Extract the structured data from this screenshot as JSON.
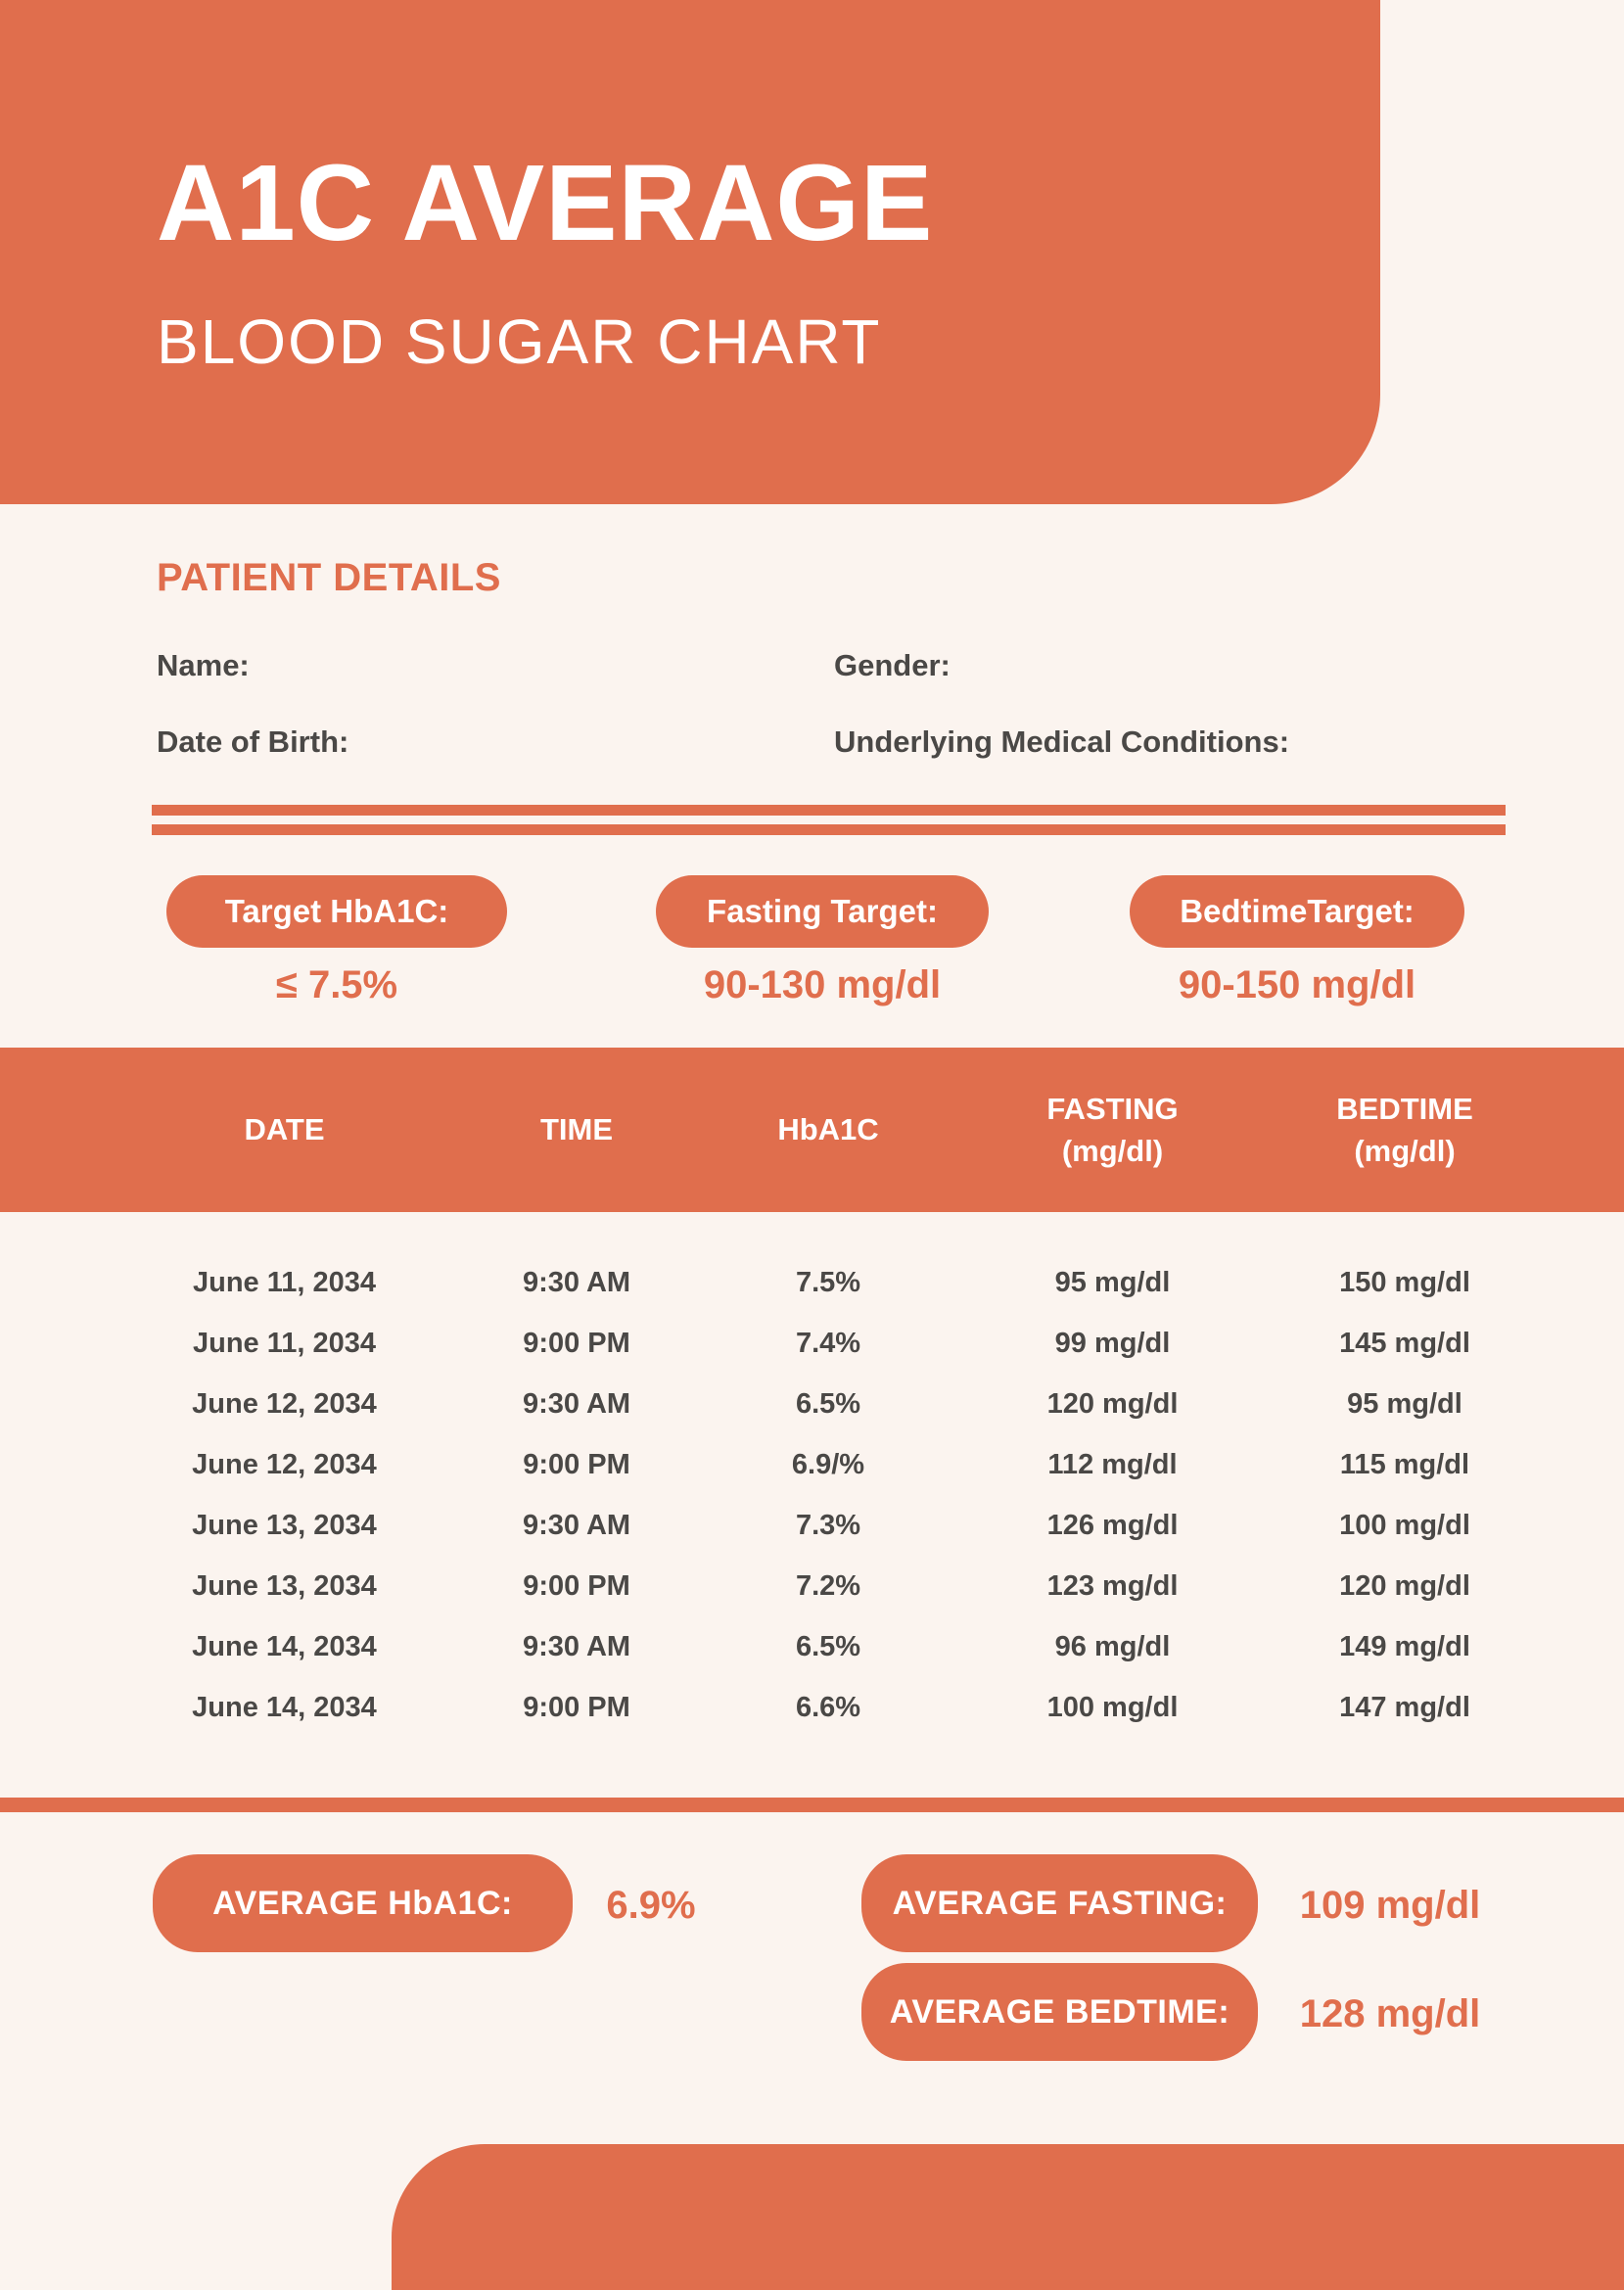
{
  "colors": {
    "accent": "#E06E4D",
    "background": "#FBF4EF",
    "text_dark": "#4A4846",
    "text_on_accent": "#FFFFFF"
  },
  "header": {
    "title": "A1C AVERAGE",
    "subtitle": "BLOOD SUGAR CHART"
  },
  "patient_details": {
    "heading": "PATIENT DETAILS",
    "name_label": "Name:",
    "gender_label": "Gender:",
    "dob_label": "Date of Birth:",
    "conditions_label": "Underlying Medical Conditions:"
  },
  "targets": [
    {
      "label": "Target HbA1C:",
      "value": "≤ 7.5%"
    },
    {
      "label": "Fasting Target:",
      "value": "90-130 mg/dl"
    },
    {
      "label": "BedtimeTarget:",
      "value": "90-150 mg/dl"
    }
  ],
  "table": {
    "columns": [
      {
        "line1": "DATE",
        "line2": ""
      },
      {
        "line1": "TIME",
        "line2": ""
      },
      {
        "line1": "HbA1C",
        "line2": ""
      },
      {
        "line1": "FASTING",
        "line2": "(mg/dl)"
      },
      {
        "line1": "BEDTIME",
        "line2": "(mg/dl)"
      }
    ],
    "rows": [
      [
        "June 11, 2034",
        "9:30 AM",
        "7.5%",
        "95 mg/dl",
        "150 mg/dl"
      ],
      [
        "June 11, 2034",
        "9:00 PM",
        "7.4%",
        "99 mg/dl",
        "145 mg/dl"
      ],
      [
        "June 12, 2034",
        "9:30 AM",
        "6.5%",
        "120 mg/dl",
        "95 mg/dl"
      ],
      [
        "June 12, 2034",
        "9:00 PM",
        "6.9/%",
        "112 mg/dl",
        "115 mg/dl"
      ],
      [
        "June 13, 2034",
        "9:30 AM",
        "7.3%",
        "126 mg/dl",
        "100 mg/dl"
      ],
      [
        "June 13, 2034",
        "9:00 PM",
        "7.2%",
        "123 mg/dl",
        "120 mg/dl"
      ],
      [
        "June 14, 2034",
        "9:30 AM",
        "6.5%",
        "96 mg/dl",
        "149 mg/dl"
      ],
      [
        "June 14, 2034",
        "9:00 PM",
        "6.6%",
        "100 mg/dl",
        "147 mg/dl"
      ]
    ]
  },
  "averages": [
    {
      "label": "AVERAGE HbA1C:",
      "value": "6.9%"
    },
    {
      "label": "AVERAGE FASTING:",
      "value": "109 mg/dl"
    },
    {
      "label": "AVERAGE BEDTIME:",
      "value": "128 mg/dl"
    }
  ]
}
